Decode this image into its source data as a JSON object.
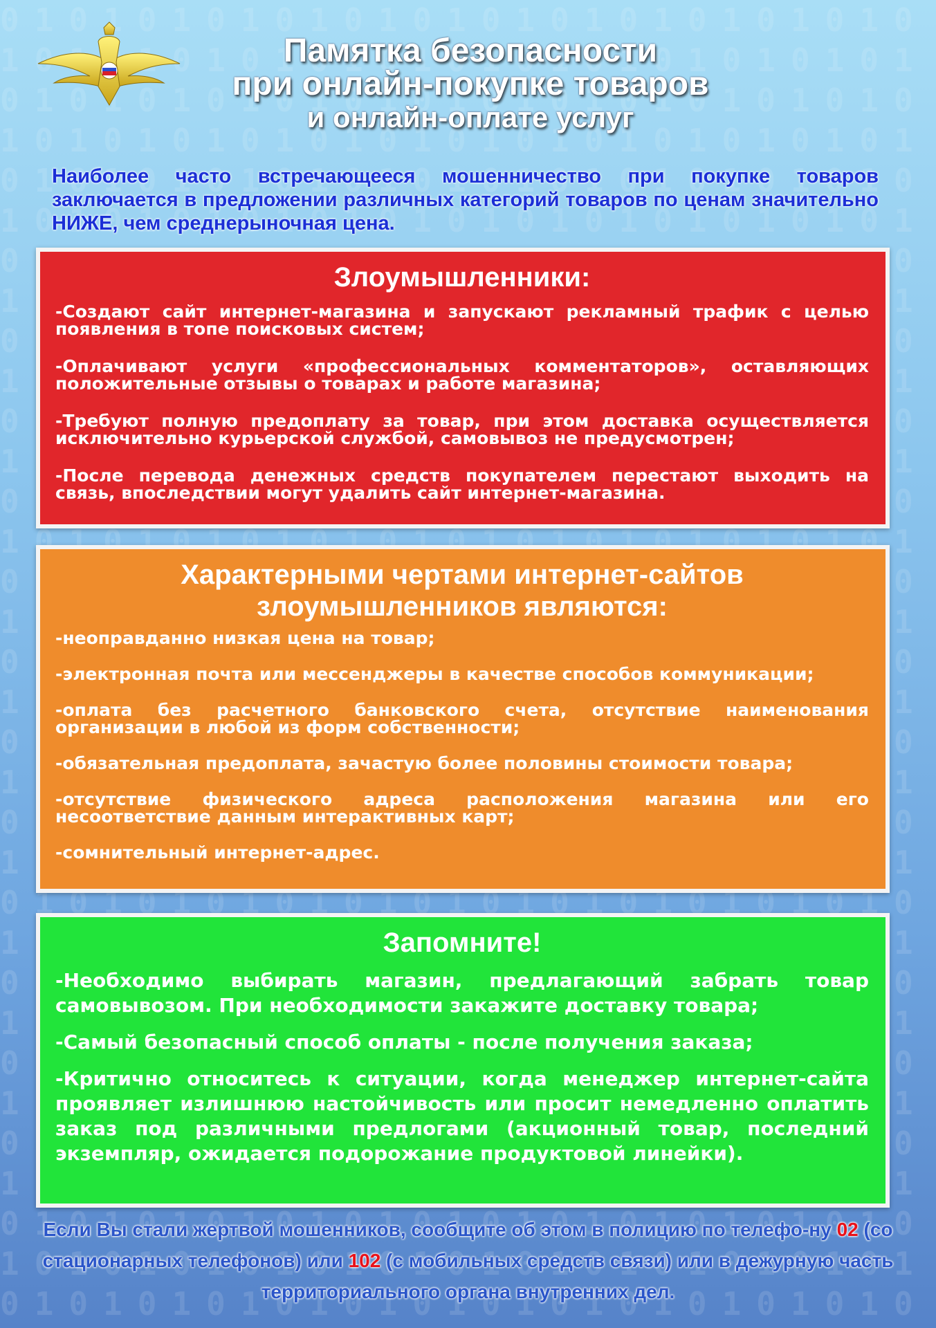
{
  "colors": {
    "red_box": "#e1262b",
    "orange_box": "#ef8c2c",
    "green_box": "#21e43a",
    "intro_text": "#1b2fd6",
    "footer_text": "#2a55c9",
    "emergency_number": "#e8121a"
  },
  "emblem": {
    "icon": "double-headed-eagle-emblem"
  },
  "title": {
    "line1": "Памятка безопасности",
    "line2": "при онлайн-покупке товаров",
    "line3": "и онлайн-оплате услуг"
  },
  "intro": "Наиболее часто встречающееся мошенничество при покупке товаров заключается в предложении различных категорий товаров по ценам значительно НИЖЕ, чем среднерыночная цена.",
  "fraudsters": {
    "heading": "Злоумышленники:",
    "items": [
      "-Создают сайт интернет-магазина и запускают рекламный трафик с целью появления в топе поисковых систем;",
      "-Оплачивают услуги «профессиональных комментаторов», оставляющих положительные отзывы о товарах и работе магазина;",
      "-Требуют полную предоплату за товар, при этом доставка осуществляется исключительно курьерской службой, самовывоз не предусмотрен;",
      "-После перевода денежных средств покупателем перестают выходить на связь, впоследствии могут удалить сайт интернет-магазина."
    ]
  },
  "features": {
    "heading_line1": "Характерными чертами интернет-сайтов",
    "heading_line2": "злоумышленников являются:",
    "items": [
      "-неоправданно низкая цена на товар;",
      "-электронная почта или мессенджеры в качестве способов коммуникации;",
      "-оплата без расчетного банковского счета, отсутствие наименования организации в любой из форм собственности;",
      "-обязательная предоплата, зачастую более половины стоимости товара;",
      "-отсутствие физического адреса расположения магазина или его несоответствие данным интерактивных карт;",
      "-сомнительный интернет-адрес."
    ]
  },
  "remember": {
    "heading": "Запомните!",
    "items": [
      "-Необходимо выбирать магазин, предлагающий забрать товар самовывозом. При необходимости закажите доставку товара;",
      "-Самый безопасный способ оплаты - после получения заказа;",
      "-Критично относитесь к ситуации, когда менеджер интернет-сайта проявляет излишнюю настойчивость или просит немедленно оплатить заказ под различными предлогами (акционный товар, последний экземпляр, ожидается подорожание продуктовой линейки)."
    ]
  },
  "footer": {
    "part1": "Если Вы стали жертвой мошенников, сообщите об этом   в полицию по телефо-ну ",
    "num1": "02",
    "part2": " (со стационарных телефонов) или ",
    "num2": "102",
    "part3": " (с мобильных средств связи) или в дежурную часть территориального органа внутренних дел."
  }
}
